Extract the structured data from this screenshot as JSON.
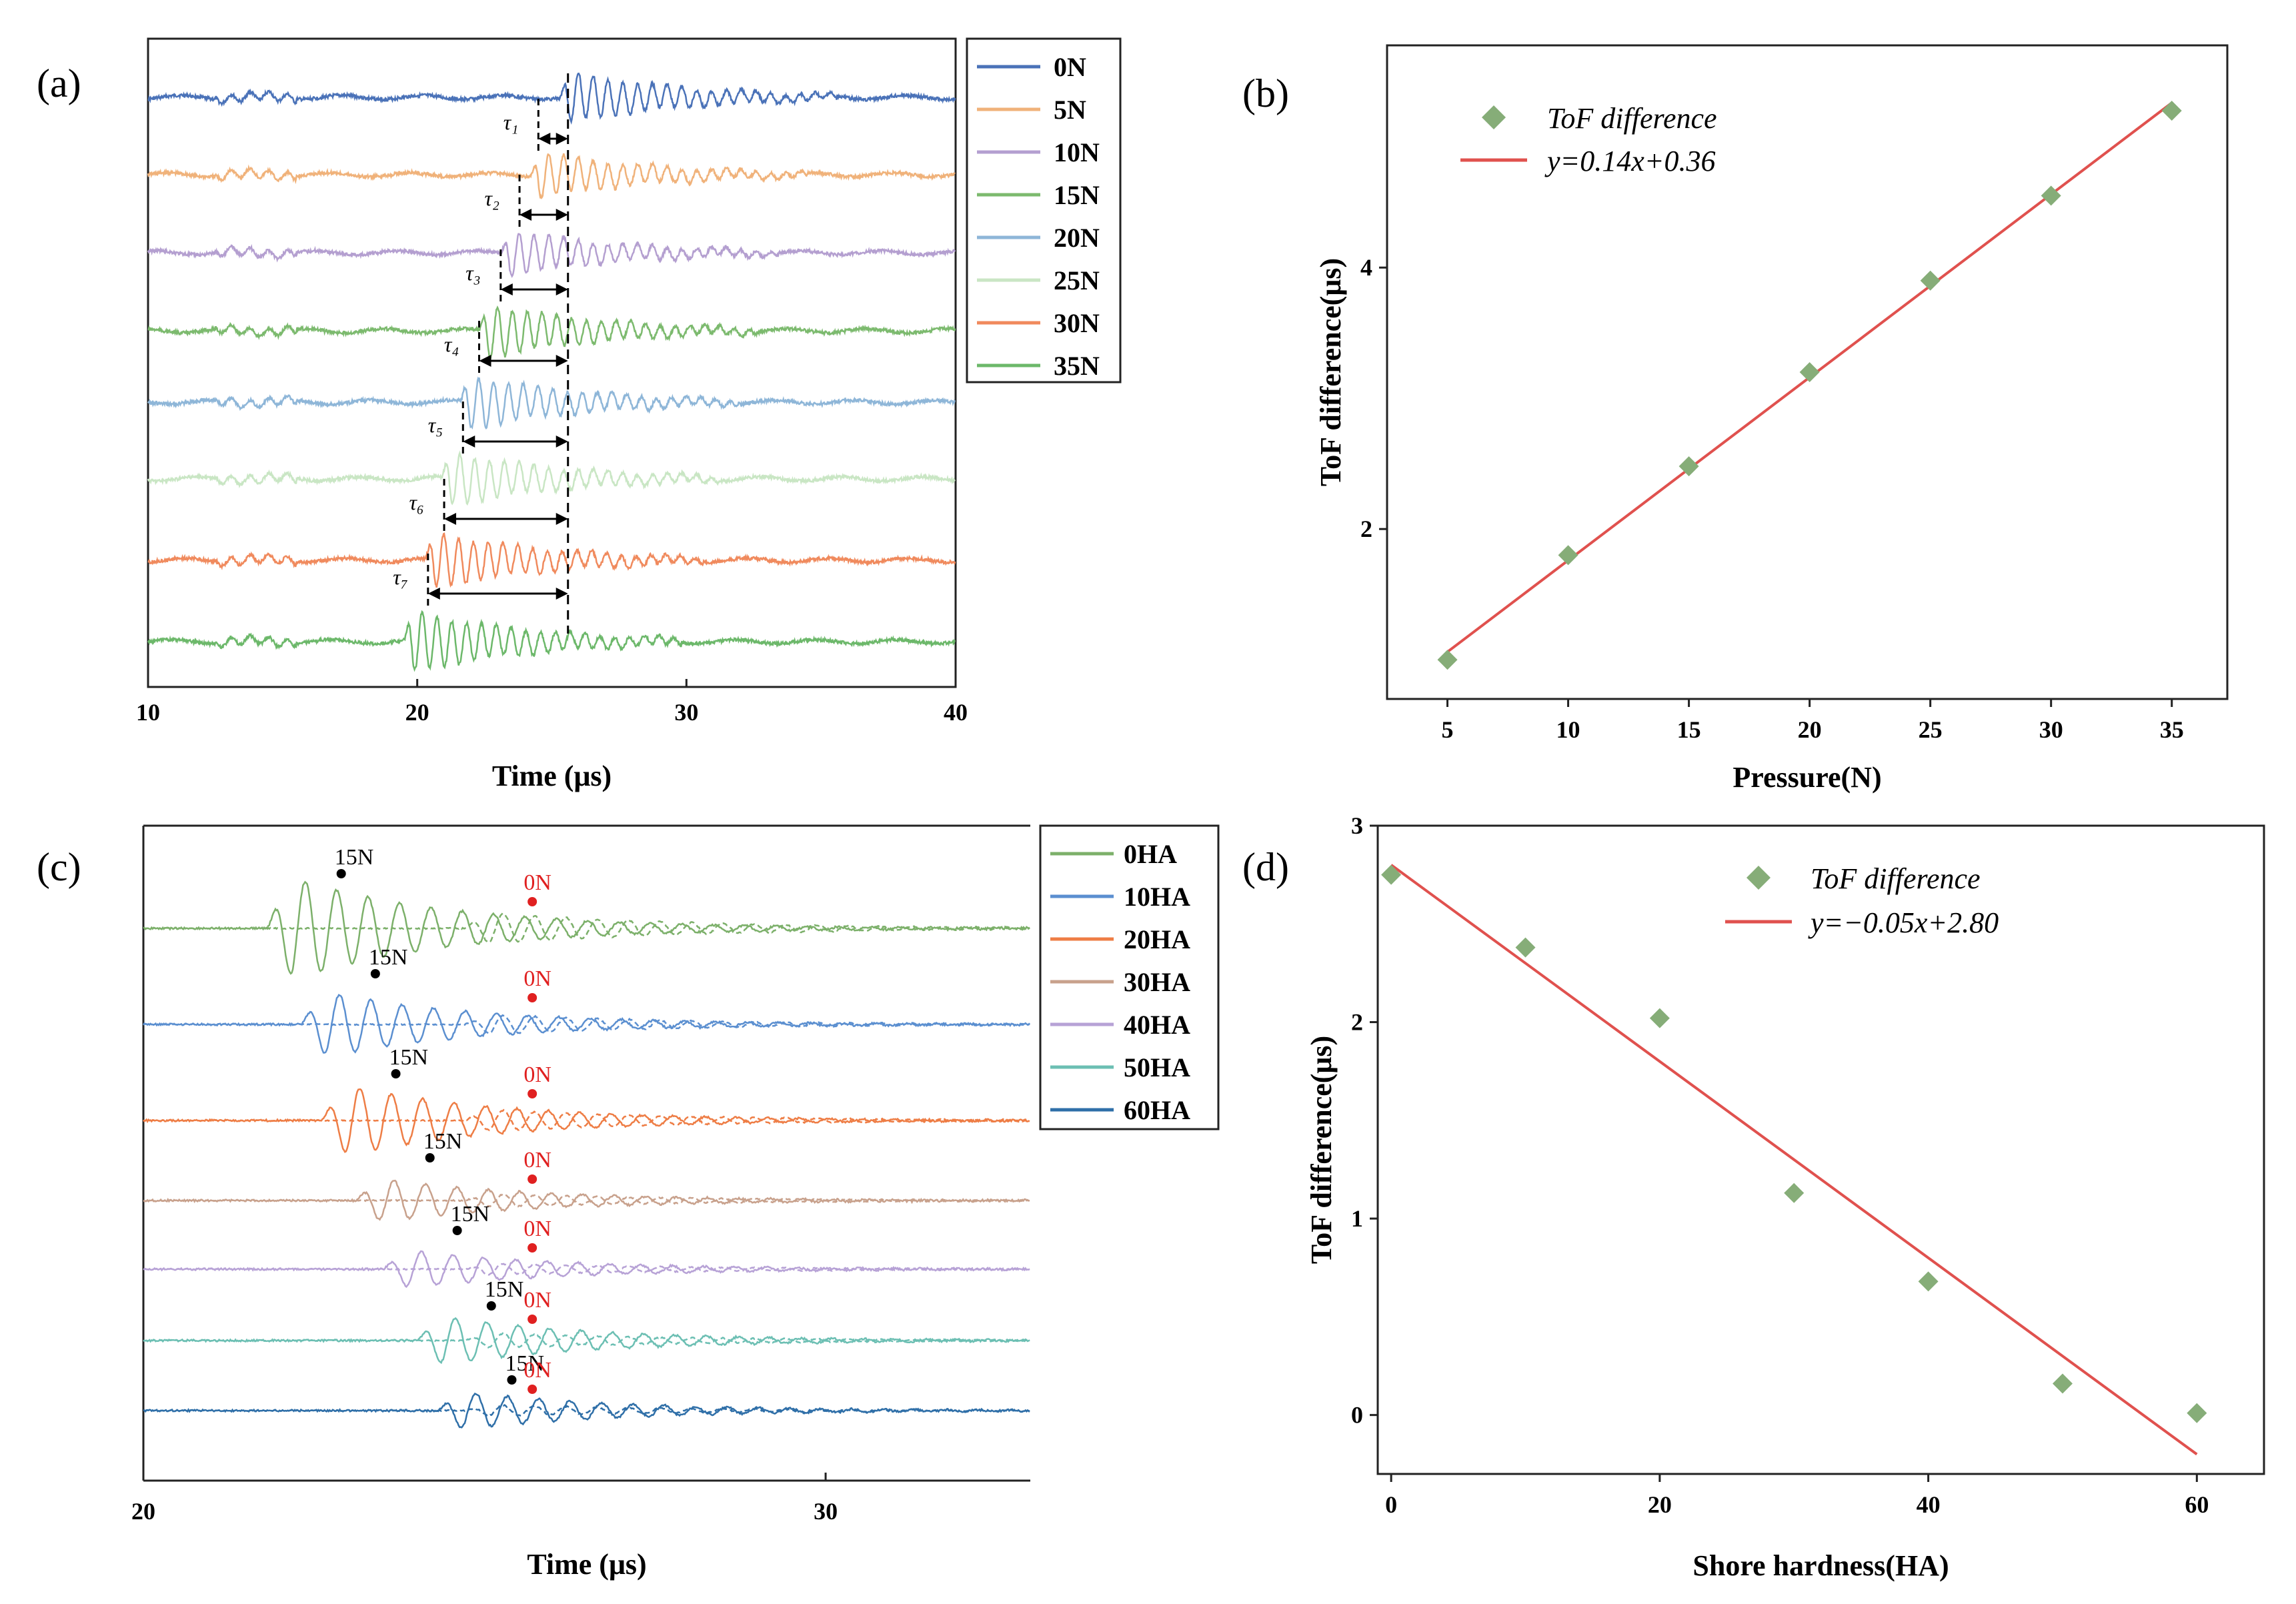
{
  "chart_data": [
    {
      "panel": "(a)",
      "type": "line",
      "xlabel": "Time (μs)",
      "xlim": [
        10,
        40
      ],
      "xticks": [
        "10",
        "20",
        "30",
        "40"
      ],
      "legend_position": "right",
      "series": [
        {
          "name": "0N",
          "color": "#4a72b8",
          "onset": 25.6,
          "amp": 0.9
        },
        {
          "name": "5N",
          "color": "#f0b27a",
          "onset": 24.5,
          "amp": 0.8
        },
        {
          "name": "10N",
          "color": "#b49fd0",
          "onset": 23.4,
          "amp": 0.8
        },
        {
          "name": "15N",
          "color": "#7cba6e",
          "onset": 22.6,
          "amp": 0.95
        },
        {
          "name": "20N",
          "color": "#8eb6d8",
          "onset": 21.9,
          "amp": 0.95
        },
        {
          "name": "25N",
          "color": "#c9e6c4",
          "onset": 21.2,
          "amp": 0.95
        },
        {
          "name": "30N",
          "color": "#f08a5d",
          "onset": 20.6,
          "amp": 1.0
        },
        {
          "name": "35N",
          "color": "#6cb86a",
          "onset": 19.8,
          "amp": 1.1
        }
      ],
      "annotations": {
        "tau_labels": [
          "τ₁",
          "τ₂",
          "τ₃",
          "τ₄",
          "τ₅",
          "τ₆",
          "τ₇"
        ],
        "tau_starts": [
          24.5,
          23.8,
          23.1,
          22.3,
          21.7,
          21.0,
          20.4
        ],
        "reference_time": 25.6
      }
    },
    {
      "panel": "(b)",
      "type": "scatter",
      "xlabel": "Pressure(N)",
      "ylabel": "ToF difference(μs)",
      "xlim": [
        2.5,
        37.3
      ],
      "ylim": [
        0.7,
        5.7
      ],
      "xticks": [
        "5",
        "10",
        "15",
        "20",
        "25",
        "30",
        "35"
      ],
      "yticks": [
        "2",
        "4"
      ],
      "legend_position": "top-left",
      "x": [
        5,
        10,
        15,
        20,
        25,
        30,
        35
      ],
      "y": [
        1.0,
        1.8,
        2.48,
        3.2,
        3.9,
        4.55,
        5.2
      ],
      "marker_label": "ToF difference",
      "fit_label": "y=0.14x+0.36",
      "fit": {
        "slope": 0.14,
        "intercept": 0.36
      },
      "colors": {
        "marker": "#86ad78",
        "fit": "#e0514e"
      }
    },
    {
      "panel": "(c)",
      "type": "line",
      "xlabel": "Time (μs)",
      "xlim": [
        20,
        33
      ],
      "xticks": [
        "20",
        "30"
      ],
      "legend_position": "right",
      "series": [
        {
          "name": "0HA",
          "color": "#7cb06a",
          "t15": 22.9,
          "amp": 0.95
        },
        {
          "name": "10HA",
          "color": "#5b8fd0",
          "t15": 23.4,
          "amp": 0.6
        },
        {
          "name": "20HA",
          "color": "#ee7d45",
          "t15": 23.7,
          "amp": 0.65
        },
        {
          "name": "30HA",
          "color": "#c8a18c",
          "t15": 24.2,
          "amp": 0.4
        },
        {
          "name": "40HA",
          "color": "#b7a2d6",
          "t15": 24.6,
          "amp": 0.35
        },
        {
          "name": "50HA",
          "color": "#6cbfb3",
          "t15": 25.1,
          "amp": 0.45
        },
        {
          "name": "60HA",
          "color": "#2f6fa8",
          "t15": 25.4,
          "amp": 0.35
        }
      ],
      "annotations": {
        "label_15N": "15N",
        "label_0N": "0N",
        "t0N": 25.7
      }
    },
    {
      "panel": "(d)",
      "type": "scatter",
      "xlabel": "Shore hardness(HA)",
      "ylabel": "ToF difference(μs)",
      "xlim": [
        -1,
        65
      ],
      "ylim": [
        -0.3,
        3.0
      ],
      "xticks": [
        "0",
        "20",
        "40",
        "60"
      ],
      "yticks": [
        "0",
        "1",
        "2",
        "3"
      ],
      "legend_position": "top-center",
      "x": [
        0,
        10,
        20,
        30,
        40,
        50,
        60
      ],
      "y": [
        2.75,
        2.38,
        2.02,
        1.13,
        0.68,
        0.16,
        0.01
      ],
      "marker_label": "ToF difference",
      "fit_label": "y=−0.05x+2.80",
      "fit": {
        "slope": -0.05,
        "intercept": 2.8
      },
      "colors": {
        "marker": "#86ad78",
        "fit": "#e0514e"
      }
    }
  ]
}
